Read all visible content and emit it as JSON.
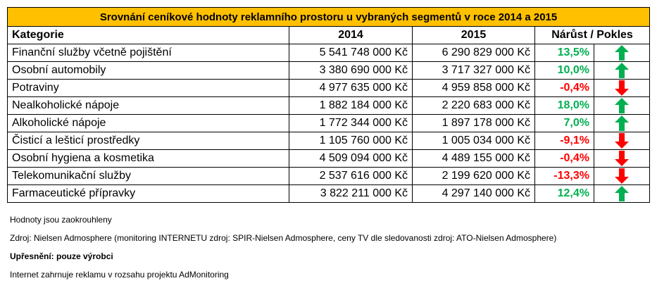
{
  "title": "Srovnání ceníkové hodnoty reklamního prostoru u vybraných segmentů v roce 2014 a 2015",
  "headers": {
    "category": "Kategorie",
    "y2014": "2014",
    "y2015": "2015",
    "change": "Nárůst / Pokles"
  },
  "colors": {
    "header_bg": "#FFC000",
    "up": "#00B050",
    "down": "#FF0000"
  },
  "rows": [
    {
      "category": "Finanční služby včetně pojištění",
      "y2014": "5 541 748 000 Kč",
      "y2015": "6 290 829 000 Kč",
      "change": "13,5%",
      "trend": "up"
    },
    {
      "category": "Osobní automobily",
      "y2014": "3 380 690 000 Kč",
      "y2015": "3 717 327 000 Kč",
      "change": "10,0%",
      "trend": "up"
    },
    {
      "category": "Potraviny",
      "y2014": "4 977 635 000 Kč",
      "y2015": "4 959 858 000 Kč",
      "change": "-0,4%",
      "trend": "down"
    },
    {
      "category": "Nealkoholické nápoje",
      "y2014": "1 882 184 000 Kč",
      "y2015": "2 220 683 000 Kč",
      "change": "18,0%",
      "trend": "up"
    },
    {
      "category": "Alkoholické nápoje",
      "y2014": "1 772 344 000 Kč",
      "y2015": "1 897 178 000 Kč",
      "change": "7,0%",
      "trend": "up"
    },
    {
      "category": "Čisticí a lešticí prostředky",
      "y2014": "1 105 760 000 Kč",
      "y2015": "1 005 034 000 Kč",
      "change": "-9,1%",
      "trend": "down"
    },
    {
      "category": "Osobní hygiena a kosmetika",
      "y2014": "4 509 094 000 Kč",
      "y2015": "4 489 155 000 Kč",
      "change": "-0,4%",
      "trend": "down"
    },
    {
      "category": "Telekomunikační služby",
      "y2014": "2 537 616 000 Kč",
      "y2015": "2 199 620 000 Kč",
      "change": "-13,3%",
      "trend": "down"
    },
    {
      "category": "Farmaceutické přípravky",
      "y2014": "3 822 211 000 Kč",
      "y2015": "4 297 140 000 Kč",
      "change": "12,4%",
      "trend": "up"
    }
  ],
  "notes": {
    "rounded": "Hodnoty jsou zaokrouhleny",
    "source": "Zdroj: Nielsen Admosphere (monitoring INTERNETU zdroj: SPIR-Nielsen Admosphere, ceny TV dle sledovanosti zdroj: ATO-Nielsen Admosphere)",
    "clarification": "Upřesnění: pouze výrobci",
    "internet": "Internet zahrnuje reklamu v rozsahu projektu AdMonitoring"
  }
}
